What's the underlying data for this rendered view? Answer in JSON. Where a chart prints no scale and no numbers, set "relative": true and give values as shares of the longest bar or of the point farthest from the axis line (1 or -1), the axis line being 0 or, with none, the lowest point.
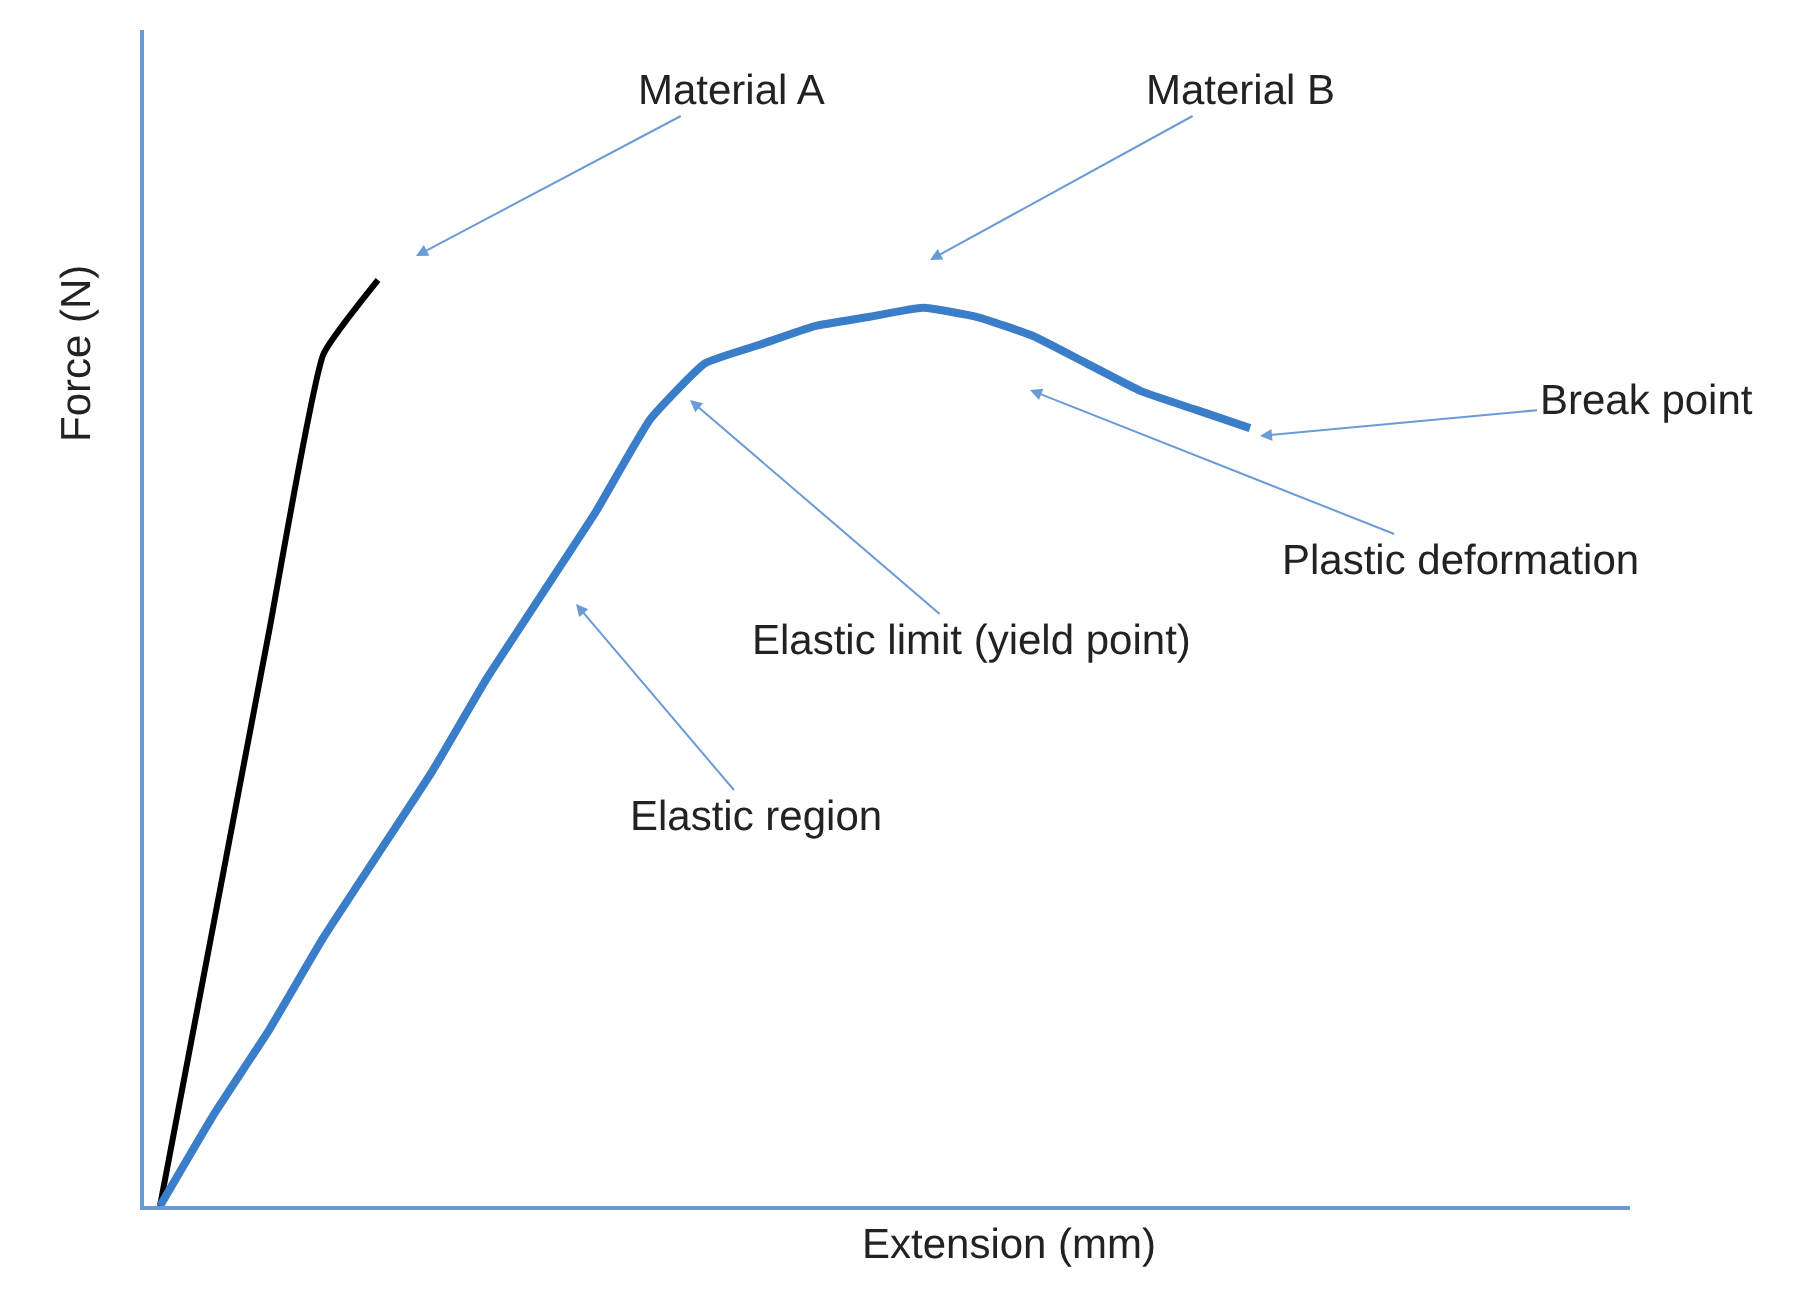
{
  "chart_data": {
    "type": "line",
    "relative": true,
    "xlabel": "Extension (mm)",
    "ylabel": "Force (N)",
    "categories": [
      null,
      null,
      null,
      null,
      null,
      null,
      null,
      null,
      null,
      null,
      null,
      null,
      null,
      null,
      null,
      null,
      null,
      null,
      null,
      null,
      null
    ],
    "series": [
      {
        "color": "#000000",
        "values": [
          0,
          0.31,
          0.62,
          0.92,
          1.0,
          null,
          null,
          null,
          null,
          null,
          null,
          null,
          null,
          null,
          null,
          null,
          null,
          null,
          null,
          null,
          null
        ]
      },
      {
        "color": "#3a7dc9",
        "values": [
          0,
          0.1,
          0.19,
          0.29,
          0.38,
          0.47,
          0.57,
          0.66,
          0.75,
          0.85,
          0.91,
          0.93,
          0.95,
          0.96,
          0.97,
          0.96,
          0.94,
          0.91,
          0.88,
          0.86,
          0.84
        ]
      }
    ],
    "annotations": [
      "Material A",
      "Material B",
      "Break point",
      "Plastic deformation",
      "Elastic limit (yield point)",
      "Elastic region"
    ],
    "marker": "none",
    "line_style": "solid"
  }
}
